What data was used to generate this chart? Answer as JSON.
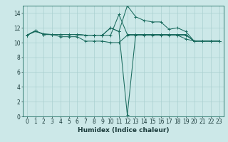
{
  "xlabel": "Humidex (Indice chaleur)",
  "background_color": "#cce8e8",
  "line_color": "#1a6b5e",
  "grid_color": "#aad0d0",
  "xlim": [
    -0.5,
    23.5
  ],
  "ylim": [
    0,
    15
  ],
  "xticks": [
    0,
    1,
    2,
    3,
    4,
    5,
    6,
    7,
    8,
    9,
    10,
    11,
    12,
    13,
    14,
    15,
    16,
    17,
    18,
    19,
    20,
    21,
    22,
    23
  ],
  "yticks": [
    0,
    2,
    4,
    6,
    8,
    10,
    12,
    14
  ],
  "lines": [
    [
      11.0,
      11.5,
      11.2,
      11.1,
      10.8,
      10.8,
      10.8,
      10.2,
      10.2,
      10.2,
      10.0,
      10.0,
      11.0,
      11.0,
      11.0,
      11.0,
      11.0,
      11.0,
      11.0,
      10.5,
      10.2,
      10.2,
      10.2,
      10.2
    ],
    [
      11.0,
      11.6,
      11.1,
      11.1,
      11.1,
      11.1,
      11.1,
      11.0,
      11.0,
      11.0,
      11.0,
      13.8,
      11.1,
      11.1,
      11.1,
      11.1,
      11.1,
      11.1,
      11.1,
      11.1,
      10.2,
      10.2,
      10.2,
      10.2
    ],
    [
      11.0,
      11.6,
      11.1,
      11.1,
      11.1,
      11.1,
      11.1,
      11.0,
      11.0,
      11.0,
      12.0,
      11.5,
      15.0,
      13.5,
      13.0,
      12.8,
      12.8,
      11.8,
      12.0,
      11.5,
      10.2,
      10.2,
      10.2,
      10.2
    ],
    [
      11.0,
      11.6,
      11.1,
      11.1,
      11.1,
      11.1,
      11.1,
      11.0,
      11.0,
      11.0,
      12.0,
      11.5,
      0.2,
      11.1,
      11.1,
      11.1,
      11.1,
      11.1,
      11.0,
      11.0,
      10.2,
      10.2,
      10.2,
      10.2
    ]
  ],
  "fontsize_xlabel": 6.5,
  "fontsize_tick": 5.5
}
